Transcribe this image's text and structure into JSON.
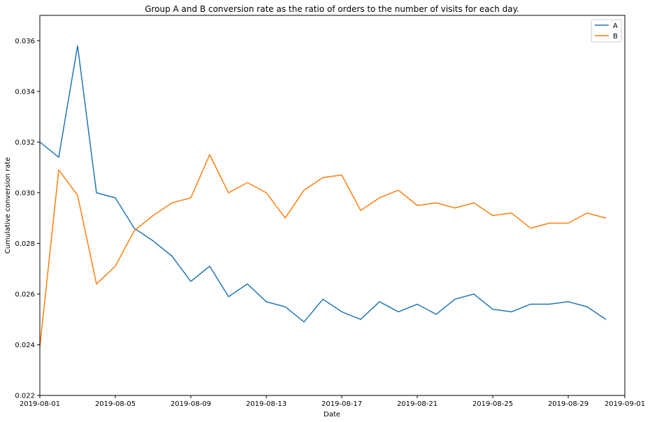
{
  "chart_data": {
    "type": "line",
    "title": "Group A and B conversion rate as the ratio of orders to the number of visits for each day.",
    "xlabel": "Date",
    "ylabel": "Cumulative conversion rate",
    "xlim": [
      "2019-08-01",
      "2019-09-01"
    ],
    "ylim": [
      0.022,
      0.037
    ],
    "x_ticks": [
      "2019-08-01",
      "2019-08-05",
      "2019-08-09",
      "2019-08-13",
      "2019-08-17",
      "2019-08-21",
      "2019-08-25",
      "2019-08-29",
      "2019-09-01"
    ],
    "y_ticks": [
      "0.022",
      "0.024",
      "0.026",
      "0.028",
      "0.030",
      "0.032",
      "0.034",
      "0.036"
    ],
    "grid": false,
    "legend_position": "top-right",
    "x": [
      "2019-08-01",
      "2019-08-02",
      "2019-08-03",
      "2019-08-04",
      "2019-08-05",
      "2019-08-06",
      "2019-08-07",
      "2019-08-08",
      "2019-08-09",
      "2019-08-10",
      "2019-08-11",
      "2019-08-12",
      "2019-08-13",
      "2019-08-14",
      "2019-08-15",
      "2019-08-16",
      "2019-08-17",
      "2019-08-18",
      "2019-08-19",
      "2019-08-20",
      "2019-08-21",
      "2019-08-22",
      "2019-08-23",
      "2019-08-24",
      "2019-08-25",
      "2019-08-26",
      "2019-08-27",
      "2019-08-28",
      "2019-08-29",
      "2019-08-30",
      "2019-08-31"
    ],
    "series": [
      {
        "name": "A",
        "color": "#1f77b4",
        "values": [
          0.032,
          0.0314,
          0.0358,
          0.03,
          0.0298,
          0.0286,
          0.0281,
          0.0275,
          0.0265,
          0.0271,
          0.0259,
          0.0264,
          0.0257,
          0.0255,
          0.0249,
          0.0258,
          0.0253,
          0.025,
          0.0257,
          0.0253,
          0.0256,
          0.0252,
          0.0258,
          0.026,
          0.0254,
          0.0253,
          0.0256,
          0.0256,
          0.0257,
          0.0255,
          0.025
        ]
      },
      {
        "name": "B",
        "color": "#ff7f0e",
        "values": [
          0.0239,
          0.0309,
          0.0299,
          0.0264,
          0.0271,
          0.0285,
          0.0291,
          0.0296,
          0.0298,
          0.0315,
          0.03,
          0.0304,
          0.03,
          0.029,
          0.0301,
          0.0306,
          0.0307,
          0.0293,
          0.0298,
          0.0301,
          0.0295,
          0.0296,
          0.0294,
          0.0296,
          0.0291,
          0.0292,
          0.0286,
          0.0288,
          0.0288,
          0.0292,
          0.029
        ]
      }
    ]
  }
}
